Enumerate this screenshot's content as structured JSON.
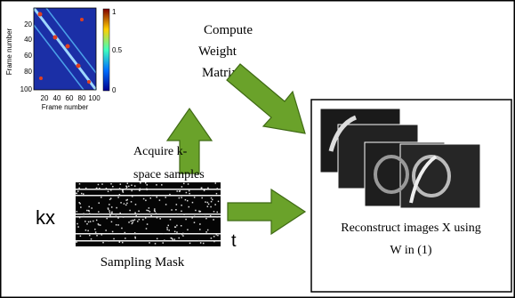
{
  "weight_matrix": {
    "title_lines": [
      "Compute",
      "Weight",
      "Matrix"
    ],
    "y_label": "Frame number",
    "x_label": "Frame number",
    "y_ticks": [
      "20",
      "40",
      "60",
      "80",
      "100"
    ],
    "x_ticks": [
      "20",
      "40",
      "60",
      "80",
      "100"
    ],
    "colorbar_ticks": [
      "1",
      "0.5",
      "0"
    ]
  },
  "acquire": {
    "lines": [
      "Acquire k-",
      "space samples"
    ]
  },
  "sampling_mask": {
    "axis_y": "kx",
    "axis_x": "t",
    "caption": "Sampling Mask"
  },
  "reconstruct": {
    "lines": [
      "Reconstruct images X using",
      "W in (1)"
    ]
  }
}
